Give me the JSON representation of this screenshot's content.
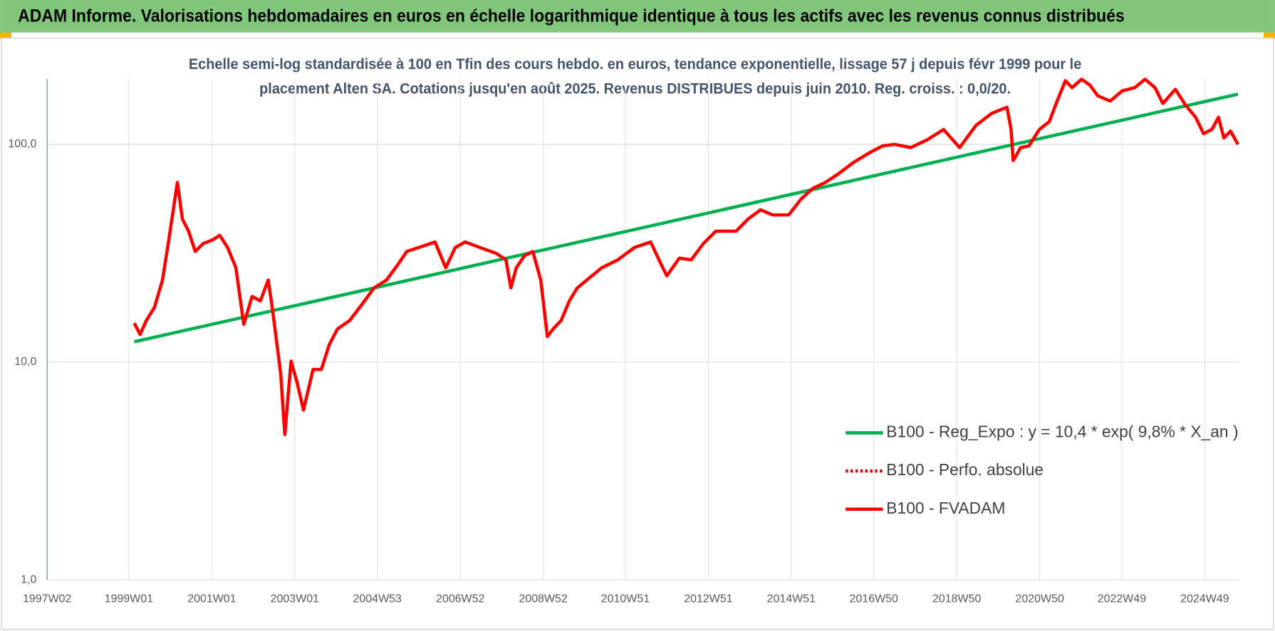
{
  "chart_data": {
    "type": "line",
    "title": "ADAM Informe. Valorisations hebdomadaires en euros en échelle logarithmique identique à tous les actifs avec les revenus connus distribués",
    "subtitle": [
      "Echelle semi-log standardisée à 100 en Tfin des cours hebdo. en euros, tendance exponentielle, lissage 57 j depuis févr 1999 pour le",
      "placement Alten SA. Cotations jusqu'en août 2025. Revenus DISTRIBUES depuis juin 2010. Reg. croiss. : 0,0/20."
    ],
    "log_scale_y": true,
    "grid": true,
    "legend_position": "right",
    "xlim": [
      1997.03,
      2025.77
    ],
    "xticks": [
      {
        "value": 1997.03,
        "label": "1997W02"
      },
      {
        "value": 1999.0,
        "label": "1999W01"
      },
      {
        "value": 2001.0,
        "label": "2001W01"
      },
      {
        "value": 2003.0,
        "label": "2003W01"
      },
      {
        "value": 2004.99,
        "label": "2004W53"
      },
      {
        "value": 2006.99,
        "label": "2006W52"
      },
      {
        "value": 2008.99,
        "label": "2008W52"
      },
      {
        "value": 2010.97,
        "label": "2010W51"
      },
      {
        "value": 2012.97,
        "label": "2012W51"
      },
      {
        "value": 2014.97,
        "label": "2014W51"
      },
      {
        "value": 2016.96,
        "label": "2016W50"
      },
      {
        "value": 2018.96,
        "label": "2018W50"
      },
      {
        "value": 2020.96,
        "label": "2020W50"
      },
      {
        "value": 2022.94,
        "label": "2022W49"
      },
      {
        "value": 2024.94,
        "label": "2024W49"
      }
    ],
    "ylim": [
      1,
      200
    ],
    "yticks": [
      {
        "value": 1,
        "label": "1,0"
      },
      {
        "value": 10,
        "label": "10,0"
      },
      {
        "value": 100,
        "label": "100,0"
      }
    ],
    "series": [
      {
        "name": "B100 - Reg_Expo : y = 10,4 * exp( 9,8% *  X_an )",
        "color": "#00b050",
        "dash": "solid",
        "x": [
          1999.13,
          2025.74
        ],
        "values": [
          12.4,
          170
        ]
      },
      {
        "name": "B100 - Perfo. absolue",
        "color": "#e00000",
        "dash": "dotted"
      },
      {
        "name": "B100 - FVADAM",
        "color": "#ff0000",
        "dash": "solid",
        "x": [
          1999.13,
          1999.27,
          1999.42,
          1999.62,
          1999.81,
          1999.95,
          2000.07,
          2000.17,
          2000.29,
          2000.44,
          2000.6,
          2000.79,
          2001.03,
          2001.19,
          2001.38,
          2001.58,
          2001.77,
          2001.97,
          2002.17,
          2002.36,
          2002.46,
          2002.66,
          2002.76,
          2002.91,
          2003.05,
          2003.21,
          2003.44,
          2003.64,
          2003.83,
          2004.03,
          2004.32,
          2004.62,
          2004.91,
          2005.21,
          2005.5,
          2005.7,
          2005.99,
          2006.38,
          2006.64,
          2006.87,
          2007.11,
          2007.46,
          2007.85,
          2008.09,
          2008.21,
          2008.34,
          2008.54,
          2008.74,
          2008.93,
          2009.09,
          2009.23,
          2009.42,
          2009.62,
          2009.81,
          2010.11,
          2010.4,
          2010.79,
          2011.19,
          2011.58,
          2011.78,
          2011.97,
          2012.27,
          2012.56,
          2012.85,
          2013.15,
          2013.44,
          2013.64,
          2013.93,
          2014.23,
          2014.52,
          2014.91,
          2015.21,
          2015.5,
          2015.79,
          2016.09,
          2016.48,
          2016.87,
          2017.17,
          2017.46,
          2017.85,
          2018.25,
          2018.64,
          2019.03,
          2019.42,
          2019.81,
          2020.17,
          2020.27,
          2020.32,
          2020.5,
          2020.7,
          2020.95,
          2021.19,
          2021.38,
          2021.58,
          2021.74,
          2021.97,
          2022.17,
          2022.36,
          2022.66,
          2022.95,
          2023.25,
          2023.5,
          2023.74,
          2023.93,
          2024.23,
          2024.48,
          2024.72,
          2024.91,
          2025.11,
          2025.27,
          2025.4,
          2025.56,
          2025.74
        ],
        "values": [
          15.1,
          13.4,
          15.5,
          17.9,
          23.8,
          35.1,
          50,
          66.8,
          45.4,
          39.9,
          32.2,
          35,
          36.5,
          38.2,
          33.6,
          27.1,
          14.9,
          20,
          19.1,
          23.8,
          17.6,
          8.87,
          4.65,
          10.1,
          8.13,
          6.02,
          9.25,
          9.25,
          12,
          14.2,
          15.5,
          18.4,
          21.9,
          23.8,
          28.3,
          32.2,
          33.6,
          35.6,
          27.1,
          33.6,
          35.6,
          33.6,
          31.6,
          29.5,
          21.9,
          27.1,
          30.8,
          32.2,
          23.8,
          13.1,
          14.2,
          15.5,
          19.1,
          21.9,
          24.4,
          27.1,
          29.5,
          33.6,
          35.6,
          29.5,
          24.9,
          30,
          29.5,
          35,
          39.9,
          39.9,
          39.9,
          45.4,
          50,
          47.4,
          47.4,
          56.2,
          62.9,
          66.8,
          72.8,
          82.8,
          91.8,
          98.3,
          100,
          96.6,
          105,
          117,
          96.6,
          122,
          139,
          148,
          117,
          84.2,
          96.6,
          98.3,
          117,
          127,
          158,
          196,
          182,
          199,
          187,
          167,
          158,
          176,
          182,
          199,
          182,
          154,
          179,
          151,
          133,
          112,
          117,
          133,
          107,
          115,
          100
        ]
      }
    ]
  }
}
